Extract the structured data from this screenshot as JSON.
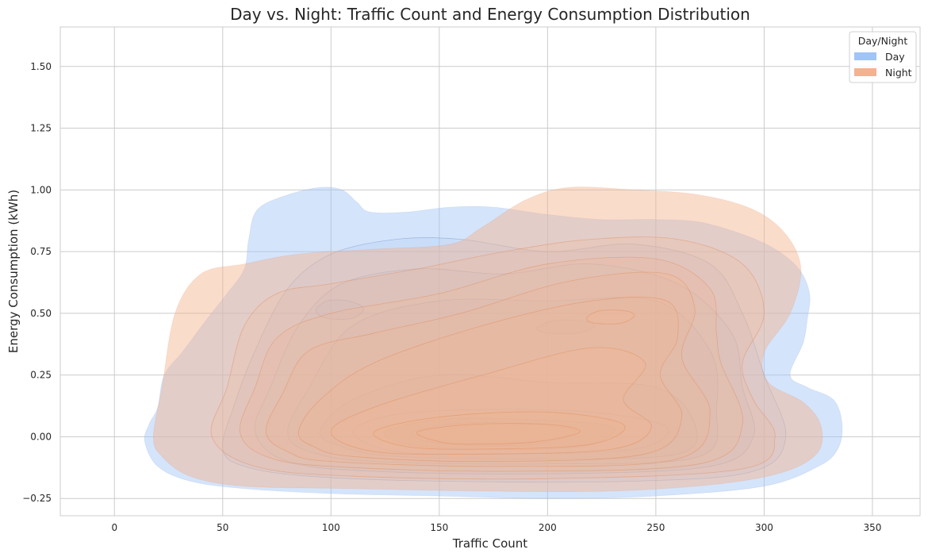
{
  "chart_data": {
    "type": "kde_contour",
    "title": "Day vs. Night: Traffic Count and Energy Consumption Distribution",
    "xlabel": "Traffic Count",
    "ylabel": "Energy Consumption (kWh)",
    "xlim": [
      -25,
      372
    ],
    "ylim": [
      -0.32,
      1.66
    ],
    "xticks": [
      0,
      50,
      100,
      150,
      200,
      250,
      300,
      350
    ],
    "xtick_labels": [
      "0",
      "50",
      "100",
      "150",
      "200",
      "250",
      "300",
      "350"
    ],
    "yticks": [
      -0.25,
      0,
      0.25,
      0.5,
      0.75,
      1.0,
      1.25,
      1.5
    ],
    "ytick_labels": [
      "−0.25",
      "0.00",
      "0.25",
      "0.50",
      "0.75",
      "1.00",
      "1.25",
      "1.50"
    ],
    "grid": true,
    "legend": {
      "title": "Day/Night",
      "placement": "top-right"
    },
    "series": [
      {
        "name": "Day",
        "color": "#a1c4f7",
        "line_color": "#7390c0",
        "levels": [
          [
            [
              14,
              -0.02
            ],
            [
              16,
              0.05
            ],
            [
              20,
              0.12
            ],
            [
              23,
              0.25
            ],
            [
              32,
              0.35
            ],
            [
              43,
              0.48
            ],
            [
              52,
              0.58
            ],
            [
              60,
              0.68
            ],
            [
              62,
              0.8
            ],
            [
              66,
              0.92
            ],
            [
              80,
              0.98
            ],
            [
              95,
              1.01
            ],
            [
              105,
              1.0
            ],
            [
              112,
              0.95
            ],
            [
              118,
              0.91
            ],
            [
              135,
              0.91
            ],
            [
              155,
              0.93
            ],
            [
              175,
              0.93
            ],
            [
              200,
              0.9
            ],
            [
              225,
              0.88
            ],
            [
              250,
              0.88
            ],
            [
              270,
              0.87
            ],
            [
              290,
              0.82
            ],
            [
              305,
              0.76
            ],
            [
              316,
              0.68
            ],
            [
              321,
              0.58
            ],
            [
              320,
              0.48
            ],
            [
              318,
              0.38
            ],
            [
              312,
              0.25
            ],
            [
              320,
              0.2
            ],
            [
              332,
              0.15
            ],
            [
              336,
              0.05
            ],
            [
              334,
              -0.05
            ],
            [
              325,
              -0.12
            ],
            [
              300,
              -0.2
            ],
            [
              250,
              -0.24
            ],
            [
              200,
              -0.25
            ],
            [
              150,
              -0.24
            ],
            [
              100,
              -0.23
            ],
            [
              60,
              -0.21
            ],
            [
              35,
              -0.18
            ],
            [
              20,
              -0.12
            ]
          ],
          [
            [
              50,
              -0.05
            ],
            [
              55,
              0.12
            ],
            [
              65,
              0.35
            ],
            [
              80,
              0.6
            ],
            [
              100,
              0.74
            ],
            [
              130,
              0.8
            ],
            [
              160,
              0.8
            ],
            [
              200,
              0.75
            ],
            [
              240,
              0.78
            ],
            [
              275,
              0.7
            ],
            [
              290,
              0.5
            ],
            [
              300,
              0.25
            ],
            [
              310,
              0.0
            ],
            [
              295,
              -0.14
            ],
            [
              240,
              -0.18
            ],
            [
              150,
              -0.18
            ],
            [
              90,
              -0.16
            ],
            [
              60,
              -0.12
            ]
          ],
          [
            [
              65,
              0.02
            ],
            [
              72,
              0.2
            ],
            [
              85,
              0.45
            ],
            [
              105,
              0.62
            ],
            [
              140,
              0.68
            ],
            [
              180,
              0.66
            ],
            [
              220,
              0.7
            ],
            [
              260,
              0.62
            ],
            [
              285,
              0.42
            ],
            [
              290,
              0.2
            ],
            [
              295,
              0.0
            ],
            [
              275,
              -0.12
            ],
            [
              200,
              -0.15
            ],
            [
              120,
              -0.14
            ],
            [
              80,
              -0.1
            ]
          ],
          [
            [
              80,
              0.02
            ],
            [
              90,
              0.2
            ],
            [
              110,
              0.45
            ],
            [
              150,
              0.55
            ],
            [
              200,
              0.55
            ],
            [
              250,
              0.55
            ],
            [
              275,
              0.35
            ],
            [
              278,
              0.12
            ],
            [
              270,
              -0.08
            ],
            [
              200,
              -0.11
            ],
            [
              120,
              -0.1
            ],
            [
              90,
              -0.06
            ]
          ],
          [
            [
              95,
              0.02
            ],
            [
              110,
              0.15
            ],
            [
              150,
              0.25
            ],
            [
              200,
              0.22
            ],
            [
              250,
              0.2
            ],
            [
              268,
              0.05
            ],
            [
              260,
              -0.07
            ],
            [
              200,
              -0.09
            ],
            [
              130,
              -0.08
            ],
            [
              105,
              -0.04
            ]
          ],
          [
            [
              110,
              0.02
            ],
            [
              130,
              0.09
            ],
            [
              170,
              0.11
            ],
            [
              220,
              0.1
            ],
            [
              255,
              0.04
            ],
            [
              240,
              -0.05
            ],
            [
              180,
              -0.07
            ],
            [
              130,
              -0.06
            ]
          ],
          [
            [
              125,
              0.02
            ],
            [
              150,
              0.07
            ],
            [
              190,
              0.07
            ],
            [
              230,
              0.04
            ],
            [
              215,
              -0.04
            ],
            [
              165,
              -0.05
            ],
            [
              135,
              -0.03
            ]
          ],
          [
            [
              138,
              0.02
            ],
            [
              160,
              0.055
            ],
            [
              195,
              0.05
            ],
            [
              212,
              0.02
            ],
            [
              195,
              -0.03
            ],
            [
              165,
              -0.035
            ],
            [
              145,
              -0.02
            ]
          ],
          [
            [
              93,
              0.51
            ],
            [
              98,
              0.55
            ],
            [
              108,
              0.55
            ],
            [
              115,
              0.52
            ],
            [
              110,
              0.48
            ],
            [
              98,
              0.48
            ]
          ],
          [
            [
              195,
              0.44
            ],
            [
              203,
              0.47
            ],
            [
              215,
              0.47
            ],
            [
              222,
              0.45
            ],
            [
              214,
              0.42
            ],
            [
              200,
              0.42
            ]
          ]
        ]
      },
      {
        "name": "Night",
        "color": "#f4b28e",
        "line_color": "#e08850",
        "levels": [
          [
            [
              18,
              0.0
            ],
            [
              22,
              0.2
            ],
            [
              28,
              0.5
            ],
            [
              40,
              0.66
            ],
            [
              60,
              0.7
            ],
            [
              85,
              0.74
            ],
            [
              120,
              0.76
            ],
            [
              155,
              0.78
            ],
            [
              170,
              0.85
            ],
            [
              190,
              0.96
            ],
            [
              210,
              1.01
            ],
            [
              240,
              1.0
            ],
            [
              270,
              0.98
            ],
            [
              295,
              0.92
            ],
            [
              310,
              0.82
            ],
            [
              317,
              0.68
            ],
            [
              312,
              0.5
            ],
            [
              300,
              0.34
            ],
            [
              302,
              0.22
            ],
            [
              318,
              0.14
            ],
            [
              326,
              0.05
            ],
            [
              325,
              -0.06
            ],
            [
              310,
              -0.14
            ],
            [
              280,
              -0.19
            ],
            [
              230,
              -0.22
            ],
            [
              170,
              -0.22
            ],
            [
              110,
              -0.21
            ],
            [
              60,
              -0.2
            ],
            [
              35,
              -0.16
            ],
            [
              22,
              -0.08
            ]
          ],
          [
            [
              45,
              0.0
            ],
            [
              52,
              0.2
            ],
            [
              60,
              0.45
            ],
            [
              75,
              0.58
            ],
            [
              100,
              0.62
            ],
            [
              140,
              0.68
            ],
            [
              180,
              0.75
            ],
            [
              220,
              0.8
            ],
            [
              260,
              0.8
            ],
            [
              290,
              0.7
            ],
            [
              300,
              0.5
            ],
            [
              290,
              0.3
            ],
            [
              295,
              0.15
            ],
            [
              305,
              0.0
            ],
            [
              290,
              -0.13
            ],
            [
              200,
              -0.17
            ],
            [
              110,
              -0.16
            ],
            [
              65,
              -0.12
            ]
          ],
          [
            [
              58,
              0.02
            ],
            [
              65,
              0.2
            ],
            [
              75,
              0.4
            ],
            [
              100,
              0.5
            ],
            [
              150,
              0.58
            ],
            [
              200,
              0.7
            ],
            [
              250,
              0.72
            ],
            [
              275,
              0.6
            ],
            [
              278,
              0.42
            ],
            [
              280,
              0.3
            ],
            [
              290,
              0.05
            ],
            [
              270,
              -0.11
            ],
            [
              180,
              -0.14
            ],
            [
              100,
              -0.12
            ],
            [
              70,
              -0.08
            ]
          ],
          [
            [
              70,
              0.02
            ],
            [
              78,
              0.18
            ],
            [
              90,
              0.35
            ],
            [
              120,
              0.42
            ],
            [
              160,
              0.5
            ],
            [
              210,
              0.63
            ],
            [
              255,
              0.66
            ],
            [
              268,
              0.52
            ],
            [
              262,
              0.32
            ],
            [
              275,
              0.1
            ],
            [
              260,
              -0.09
            ],
            [
              180,
              -0.12
            ],
            [
              100,
              -0.1
            ],
            [
              80,
              -0.06
            ]
          ],
          [
            [
              85,
              0.02
            ],
            [
              95,
              0.15
            ],
            [
              120,
              0.3
            ],
            [
              170,
              0.45
            ],
            [
              220,
              0.55
            ],
            [
              255,
              0.55
            ],
            [
              260,
              0.4
            ],
            [
              252,
              0.25
            ],
            [
              262,
              0.08
            ],
            [
              245,
              -0.07
            ],
            [
              170,
              -0.1
            ],
            [
              110,
              -0.08
            ],
            [
              92,
              -0.04
            ]
          ],
          [
            [
              100,
              0.02
            ],
            [
              120,
              0.12
            ],
            [
              170,
              0.25
            ],
            [
              220,
              0.36
            ],
            [
              245,
              0.3
            ],
            [
              235,
              0.15
            ],
            [
              248,
              0.04
            ],
            [
              230,
              -0.05
            ],
            [
              170,
              -0.07
            ],
            [
              120,
              -0.06
            ]
          ],
          [
            [
              120,
              0.02
            ],
            [
              150,
              0.08
            ],
            [
              200,
              0.1
            ],
            [
              235,
              0.05
            ],
            [
              220,
              -0.03
            ],
            [
              170,
              -0.05
            ],
            [
              135,
              -0.04
            ]
          ],
          [
            [
              140,
              0.02
            ],
            [
              165,
              0.05
            ],
            [
              200,
              0.05
            ],
            [
              215,
              0.02
            ],
            [
              195,
              -0.02
            ],
            [
              165,
              -0.03
            ],
            [
              150,
              -0.02
            ]
          ],
          [
            [
              218,
              0.48
            ],
            [
              224,
              0.51
            ],
            [
              236,
              0.51
            ],
            [
              240,
              0.49
            ],
            [
              234,
              0.46
            ],
            [
              222,
              0.46
            ]
          ]
        ]
      }
    ]
  }
}
